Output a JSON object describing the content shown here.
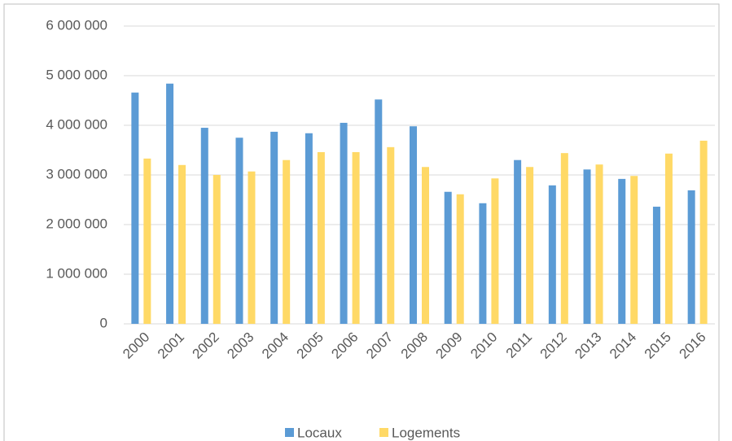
{
  "chart_data": {
    "type": "bar",
    "categories": [
      "2000",
      "2001",
      "2002",
      "2003",
      "2004",
      "2005",
      "2006",
      "2007",
      "2008",
      "2009",
      "2010",
      "2011",
      "2012",
      "2013",
      "2014",
      "2015",
      "2016"
    ],
    "series": [
      {
        "name": "Locaux",
        "color": "#5b9bd5",
        "values": [
          4660000,
          4840000,
          3950000,
          3750000,
          3870000,
          3840000,
          4050000,
          4520000,
          3980000,
          2660000,
          2430000,
          3300000,
          2790000,
          3110000,
          2920000,
          2360000,
          2690000
        ]
      },
      {
        "name": "Logements",
        "color": "#ffd966",
        "values": [
          3330000,
          3200000,
          3000000,
          3070000,
          3300000,
          3460000,
          3460000,
          3560000,
          3160000,
          2610000,
          2930000,
          3160000,
          3440000,
          3210000,
          2980000,
          3430000,
          3690000
        ]
      }
    ],
    "ylim": [
      0,
      6000000
    ],
    "yticks": [
      0,
      {
        "value": 1000000,
        "label": "1 000 000"
      },
      {
        "value": 2000000,
        "label": "2 000 000"
      },
      {
        "value": 3000000,
        "label": "3 000 000"
      },
      {
        "value": 4000000,
        "label": "4 000 000"
      },
      {
        "value": 5000000,
        "label": "5 000 000"
      },
      {
        "value": 6000000,
        "label": "6 000 000"
      }
    ],
    "grid": true,
    "legend": "bottom"
  }
}
